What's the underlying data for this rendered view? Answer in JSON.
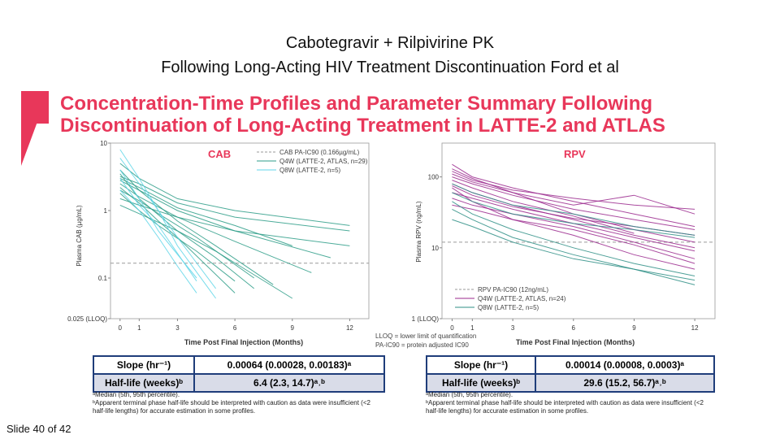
{
  "header": {
    "title_line1": "Cabotegravir + Rilpivirine PK",
    "title_line2": "Following Long-Acting HIV Treatment Discontinuation  Ford et al",
    "subtitle": "Concentration-Time Profiles and Parameter Summary Following Discontinuation of Long-Acting Treatment in LATTE-2 and ATLAS"
  },
  "colors": {
    "accent": "#e8375a",
    "cab_q4w": "#2e9e88",
    "cab_q8w": "#5fd6e8",
    "rpv_q4w": "#9b2a8e",
    "rpv_q8w": "#2f8f86",
    "table_border": "#1f3d7a"
  },
  "chart_data": [
    {
      "type": "line",
      "panel_title": "CAB",
      "ylabel": "Plasma CAB (µg/mL)",
      "xlabel": "Time Post Final Injection (Months)",
      "x_ticks": [
        "0",
        "1",
        "3",
        "6",
        "9",
        "12"
      ],
      "y_ticks": [
        "10",
        "1",
        "0.1",
        "0.025 (LLOQ)"
      ],
      "yscale": "log",
      "ylim": [
        0.025,
        10
      ],
      "xlim": [
        -0.5,
        13
      ],
      "reference_line": {
        "label": "CAB PA-IC90 (0.166µg/mL)",
        "y": 0.166
      },
      "legend": [
        "CAB PA-IC90 (0.166µg/mL)",
        "Q4W (LATTE-2, ATLAS, n=29)",
        "Q8W (LATTE-2, n=5)"
      ],
      "series": [
        {
          "name": "Q4W",
          "group": "q4w",
          "x": [
            0,
            1,
            3,
            6,
            9
          ],
          "y": [
            3.0,
            2.2,
            1.1,
            0.6,
            0.3
          ]
        },
        {
          "name": "Q4W",
          "group": "q4w",
          "x": [
            0,
            1,
            3,
            6,
            10
          ],
          "y": [
            2.5,
            1.6,
            0.8,
            0.35,
            0.12
          ]
        },
        {
          "name": "Q4W",
          "group": "q4w",
          "x": [
            0,
            1,
            3,
            5,
            8
          ],
          "y": [
            4.0,
            2.0,
            0.7,
            0.3,
            0.08
          ]
        },
        {
          "name": "Q4W",
          "group": "q4w",
          "x": [
            0,
            1,
            2,
            4,
            7
          ],
          "y": [
            2.0,
            1.4,
            0.9,
            0.4,
            0.1
          ]
        },
        {
          "name": "Q4W",
          "group": "q4w",
          "x": [
            0,
            1,
            3,
            6,
            12
          ],
          "y": [
            1.5,
            1.2,
            0.8,
            0.5,
            0.3
          ]
        },
        {
          "name": "Q4W",
          "group": "q4w",
          "x": [
            0,
            1,
            3,
            5,
            7
          ],
          "y": [
            3.5,
            1.5,
            0.5,
            0.2,
            0.07
          ]
        },
        {
          "name": "Q4W",
          "group": "q4w",
          "x": [
            0,
            1,
            2,
            4,
            6
          ],
          "y": [
            1.8,
            1.0,
            0.6,
            0.25,
            0.09
          ]
        },
        {
          "name": "Q4W",
          "group": "q4w",
          "x": [
            0,
            1,
            3,
            6,
            11
          ],
          "y": [
            2.8,
            2.0,
            1.0,
            0.5,
            0.2
          ]
        },
        {
          "name": "Q4W",
          "group": "q4w",
          "x": [
            0,
            1,
            3,
            5,
            9
          ],
          "y": [
            1.2,
            0.9,
            0.5,
            0.25,
            0.05
          ]
        },
        {
          "name": "Q4W",
          "group": "q4w",
          "x": [
            0,
            1,
            3,
            6,
            12
          ],
          "y": [
            5.0,
            3.0,
            1.5,
            1.0,
            0.6
          ]
        },
        {
          "name": "Q4W",
          "group": "q4w",
          "x": [
            0,
            1,
            2,
            3,
            6
          ],
          "y": [
            2.2,
            1.3,
            0.7,
            0.4,
            0.06
          ]
        },
        {
          "name": "Q4W",
          "group": "q4w",
          "x": [
            0,
            1,
            3,
            6,
            12
          ],
          "y": [
            3.2,
            2.5,
            1.3,
            0.8,
            0.5
          ]
        },
        {
          "name": "Q8W",
          "group": "q8w",
          "x": [
            0,
            1,
            2,
            3,
            5
          ],
          "y": [
            8.0,
            3.0,
            1.0,
            0.4,
            0.07
          ]
        },
        {
          "name": "Q8W",
          "group": "q8w",
          "x": [
            0,
            1,
            2,
            4
          ],
          "y": [
            4.0,
            1.5,
            0.5,
            0.1
          ]
        },
        {
          "name": "Q8W",
          "group": "q8w",
          "x": [
            0,
            1,
            2,
            3,
            4
          ],
          "y": [
            2.0,
            1.0,
            0.4,
            0.15,
            0.06
          ]
        },
        {
          "name": "Q8W",
          "group": "q8w",
          "x": [
            0,
            1,
            2,
            3,
            5
          ],
          "y": [
            6.0,
            2.5,
            1.0,
            0.3,
            0.05
          ]
        },
        {
          "name": "Q8W",
          "group": "q8w",
          "x": [
            0,
            1,
            2,
            4
          ],
          "y": [
            3.0,
            1.2,
            0.6,
            0.09
          ]
        }
      ]
    },
    {
      "type": "line",
      "panel_title": "RPV",
      "ylabel": "Plasma RPV (ng/mL)",
      "xlabel": "Time Post Final Injection (Months)",
      "x_ticks": [
        "0",
        "1",
        "3",
        "6",
        "9",
        "12"
      ],
      "y_ticks": [
        "100",
        "10",
        "1 (LLOQ)"
      ],
      "yscale": "log",
      "ylim": [
        1,
        300
      ],
      "xlim": [
        -0.5,
        13
      ],
      "reference_line": {
        "label": "RPV PA-IC90 (12ng/mL)",
        "y": 12
      },
      "legend": [
        "RPV PA-IC90 (12ng/mL)",
        "Q4W (LATTE-2, ATLAS, n=24)",
        "Q8W (LATTE-2, n=5)"
      ],
      "series": [
        {
          "name": "Q4W",
          "group": "q4w",
          "x": [
            0,
            1,
            3,
            6,
            9,
            12
          ],
          "y": [
            100,
            80,
            55,
            35,
            25,
            18
          ]
        },
        {
          "name": "Q4W",
          "group": "q4w",
          "x": [
            0,
            1,
            3,
            6,
            9,
            12
          ],
          "y": [
            80,
            60,
            40,
            25,
            15,
            10
          ]
        },
        {
          "name": "Q4W",
          "group": "q4w",
          "x": [
            0,
            1,
            3,
            6,
            9,
            12
          ],
          "y": [
            150,
            100,
            70,
            45,
            30,
            20
          ]
        },
        {
          "name": "Q4W",
          "group": "q4w",
          "x": [
            0,
            1,
            3,
            6,
            9,
            12
          ],
          "y": [
            60,
            50,
            35,
            22,
            14,
            9
          ]
        },
        {
          "name": "Q4W",
          "group": "q4w",
          "x": [
            0,
            1,
            3,
            6,
            9,
            12
          ],
          "y": [
            120,
            90,
            65,
            50,
            40,
            35
          ]
        },
        {
          "name": "Q4W",
          "group": "q4w",
          "x": [
            0,
            1,
            3,
            6,
            9,
            12
          ],
          "y": [
            70,
            45,
            25,
            15,
            8,
            5
          ]
        },
        {
          "name": "Q4W",
          "group": "q4w",
          "x": [
            0,
            1,
            3,
            6,
            9,
            12
          ],
          "y": [
            50,
            40,
            30,
            20,
            12,
            7
          ]
        },
        {
          "name": "Q4W",
          "group": "q4w",
          "x": [
            0,
            1,
            3,
            6,
            9
          ],
          "y": [
            90,
            70,
            45,
            28,
            16
          ]
        },
        {
          "name": "Q4W",
          "group": "q4w",
          "x": [
            0,
            1,
            3,
            6,
            9,
            12
          ],
          "y": [
            110,
            85,
            60,
            40,
            55,
            30
          ]
        },
        {
          "name": "Q4W",
          "group": "q4w",
          "x": [
            0,
            1,
            3,
            6,
            9,
            12
          ],
          "y": [
            40,
            35,
            25,
            18,
            11,
            6
          ]
        },
        {
          "name": "Q4W",
          "group": "q4w",
          "x": [
            0,
            1,
            3,
            6,
            9,
            12
          ],
          "y": [
            75,
            55,
            38,
            26,
            20,
            15
          ]
        },
        {
          "name": "Q4W",
          "group": "q4w",
          "x": [
            0,
            1,
            3,
            6,
            9,
            12
          ],
          "y": [
            130,
            95,
            60,
            30,
            18,
            12
          ]
        },
        {
          "name": "Q8W",
          "group": "q8w",
          "x": [
            0,
            1,
            3,
            6,
            9,
            12
          ],
          "y": [
            45,
            30,
            18,
            10,
            6,
            4
          ]
        },
        {
          "name": "Q8W",
          "group": "q8w",
          "x": [
            0,
            1,
            3,
            6,
            9,
            12
          ],
          "y": [
            35,
            25,
            14,
            8,
            5,
            3.5
          ]
        },
        {
          "name": "Q8W",
          "group": "q8w",
          "x": [
            0,
            1,
            3,
            6,
            9,
            12
          ],
          "y": [
            60,
            45,
            30,
            22,
            18,
            14
          ]
        },
        {
          "name": "Q8W",
          "group": "q8w",
          "x": [
            0,
            1,
            3,
            6,
            9,
            12
          ],
          "y": [
            25,
            20,
            12,
            7,
            5,
            3
          ]
        },
        {
          "name": "Q8W",
          "group": "q8w",
          "x": [
            0,
            1,
            3,
            6,
            9,
            12
          ],
          "y": [
            80,
            60,
            40,
            30,
            20,
            15
          ]
        }
      ]
    }
  ],
  "footnote_center": [
    "LLOQ = lower limit of quantification",
    "PA-IC90 = protein adjusted IC90"
  ],
  "tables": {
    "cab": {
      "row1_label": "Slope (hr⁻¹)",
      "row1_value": "0.00064 (0.00028, 0.00183)ᵃ",
      "row2_label": "Half-life (weeks)ᵇ",
      "row2_value": "6.4 (2.3, 14.7)ᵃ˒ᵇ",
      "note1": "ᵃMedian (5th, 95th percentile).",
      "note2": "ᵇApparent terminal phase half-life should be interpreted with caution as data were insufficient (<2 half-life lengths) for accurate estimation in some profiles."
    },
    "rpv": {
      "row1_label": "Slope (hr⁻¹)",
      "row1_value": "0.00014 (0.00008, 0.0003)ᵃ",
      "row2_label": "Half-life (weeks)ᵇ",
      "row2_value": "29.6 (15.2, 56.7)ᵃ˒ᵇ",
      "note1": "ᵃMedian (5th, 95th percentile).",
      "note2": "ᵇApparent terminal phase half-life should be interpreted with caution as data were insufficient (<2 half-life lengths) for accurate estimation in some profiles."
    }
  },
  "footer": {
    "slide_label": "Slide 40 of 42"
  }
}
